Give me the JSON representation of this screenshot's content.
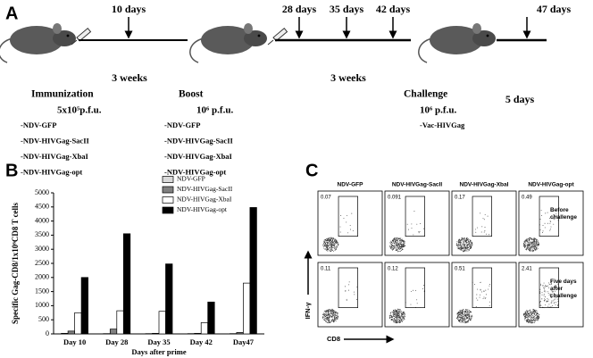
{
  "panel_a": {
    "label": "A",
    "timepoints": [
      "10 days",
      "28 days",
      "35 days",
      "42 days",
      "47 days"
    ],
    "spans": [
      "3 weeks",
      "3 weeks",
      "5 days"
    ],
    "steps": [
      {
        "title": "Immunization",
        "dose": "5x10⁵p.f.u.",
        "items": [
          "-NDV-GFP",
          "-NDV-HIVGag-SacII",
          "-NDV-HIVGag-XbaI",
          "-NDV-HIVGag-opt"
        ]
      },
      {
        "title": "Boost",
        "dose": "10⁶ p.f.u.",
        "items": [
          "-NDV-GFP",
          "-NDV-HIVGag-SacII",
          "-NDV-HIVGag-XbaI",
          "-NDV-HIVGag-opt"
        ]
      },
      {
        "title": "Challenge",
        "dose": "10⁶ p.f.u.",
        "items": [
          "-Vac-HIVGag"
        ]
      }
    ]
  },
  "chart_data": {
    "type": "bar",
    "panel_label": "B",
    "x_label": "Days after prime",
    "y_label": "Specific Gag-CD8/1x10⁶CD8 T cells",
    "categories": [
      "Day 10",
      "Day 28",
      "Day 35",
      "Day 42",
      "Day47"
    ],
    "series": [
      {
        "name": "NDV-GFP",
        "color": "#d9d9d9",
        "values": [
          20,
          10,
          10,
          10,
          10
        ]
      },
      {
        "name": "NDV-HIVGag-SacII",
        "color": "#808080",
        "values": [
          100,
          170,
          20,
          20,
          50
        ]
      },
      {
        "name": "NDV-HIVGag-XbaI",
        "color": "#ffffff",
        "values": [
          750,
          820,
          800,
          400,
          1800
        ]
      },
      {
        "name": "NDV-HIVGag-opt",
        "color": "#000000",
        "values": [
          2000,
          3550,
          2480,
          1130,
          4480
        ]
      }
    ],
    "ylim": [
      0,
      5000
    ],
    "yticks": [
      0,
      500,
      1000,
      1500,
      2000,
      2500,
      3000,
      3500,
      4000,
      4500,
      5000
    ]
  },
  "panel_c": {
    "label": "C",
    "columns": [
      "NDV-GFP",
      "NDV-HIVGag-SacII",
      "NDV-HIVGag-XbaI",
      "NDV-HIVGag-opt"
    ],
    "rows": [
      {
        "label": "Before challenge",
        "values": [
          0.07,
          0.091,
          0.17,
          0.49
        ]
      },
      {
        "label": "Five days after challenge",
        "values": [
          0.11,
          0.12,
          0.51,
          2.41
        ]
      }
    ],
    "x_axis": "CD8",
    "y_axis": "IFN-γ"
  }
}
